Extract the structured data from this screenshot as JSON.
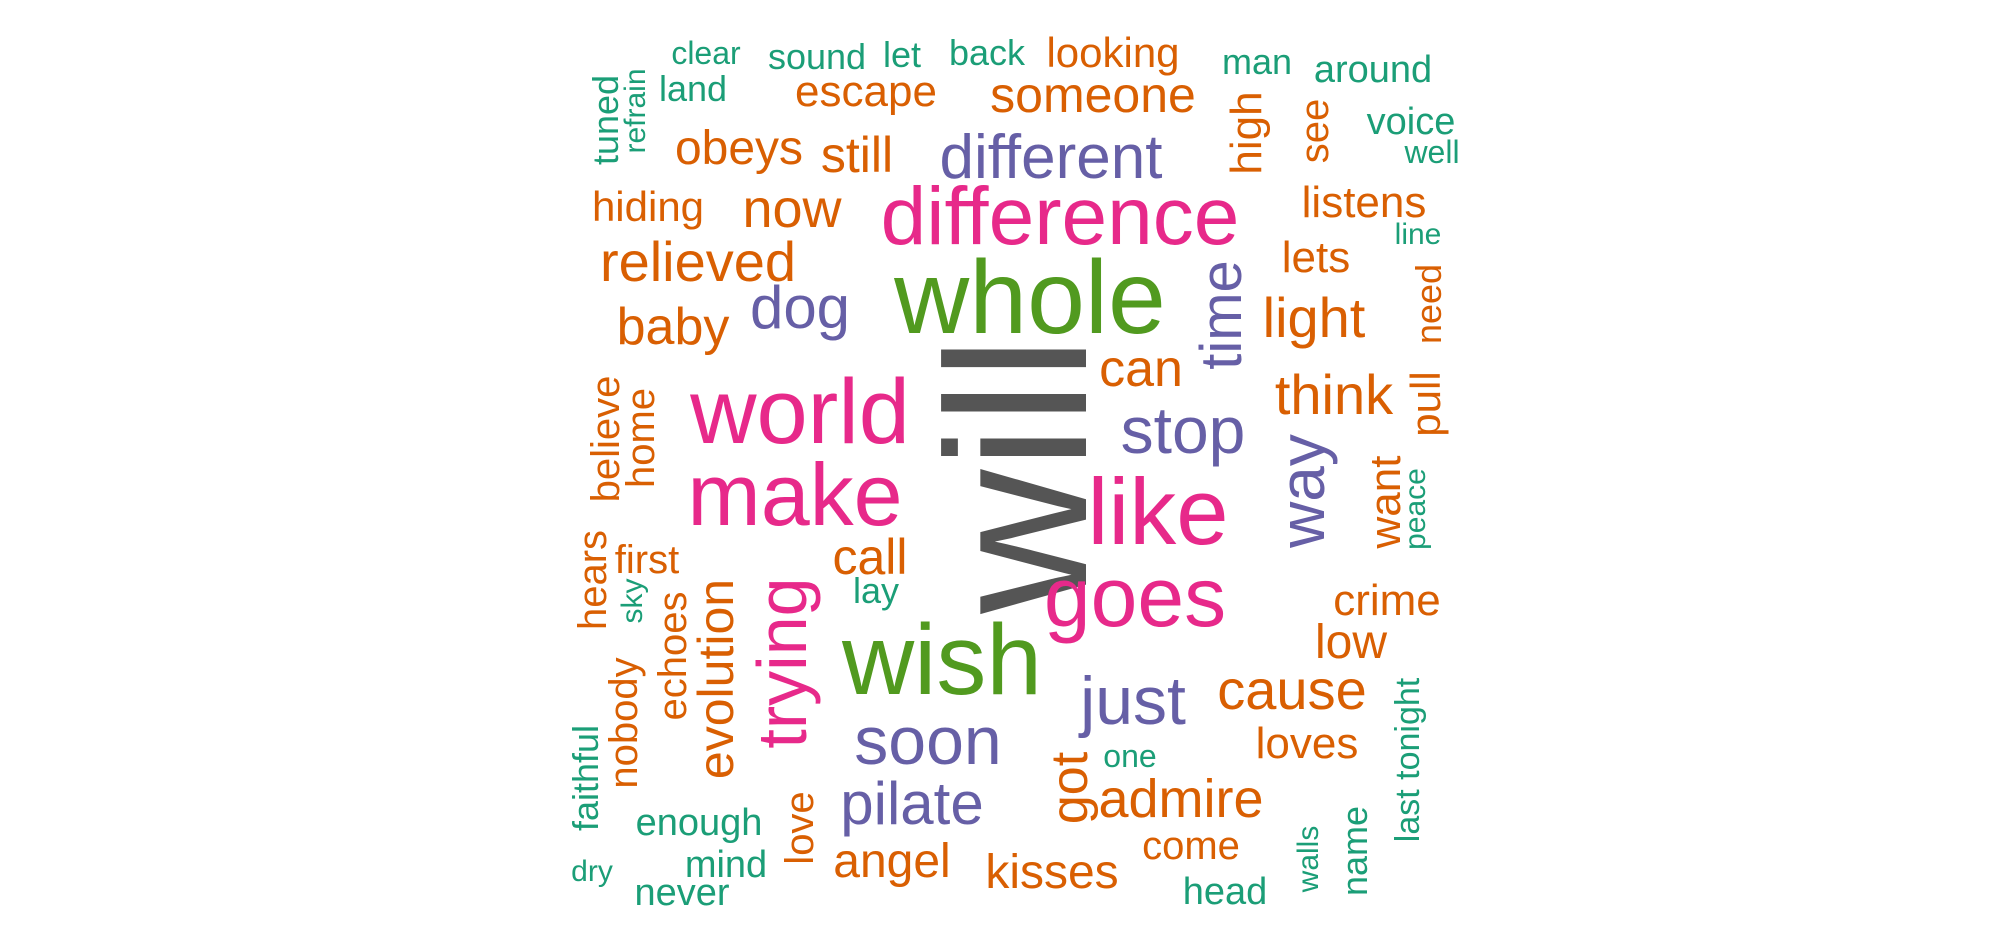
{
  "palette": {
    "gray": "#555555",
    "green": "#1b9e77",
    "orange": "#d95f02",
    "purple": "#665fa6",
    "magenta": "#e7298a",
    "lime": "#519a1f"
  },
  "words": [
    {
      "text": "will",
      "color": "gray"
    },
    {
      "text": "whole",
      "color": "lime"
    },
    {
      "text": "wish",
      "color": "lime"
    },
    {
      "text": "difference",
      "color": "magenta"
    },
    {
      "text": "world",
      "color": "magenta"
    },
    {
      "text": "make",
      "color": "magenta"
    },
    {
      "text": "like",
      "color": "magenta"
    },
    {
      "text": "goes",
      "color": "magenta"
    },
    {
      "text": "trying",
      "color": "magenta"
    },
    {
      "text": "different",
      "color": "purple"
    },
    {
      "text": "dog",
      "color": "purple"
    },
    {
      "text": "time",
      "color": "purple"
    },
    {
      "text": "stop",
      "color": "purple"
    },
    {
      "text": "way",
      "color": "purple"
    },
    {
      "text": "just",
      "color": "purple"
    },
    {
      "text": "soon",
      "color": "purple"
    },
    {
      "text": "pilate",
      "color": "purple"
    },
    {
      "text": "kisses",
      "color": "orange"
    },
    {
      "text": "angel",
      "color": "orange"
    },
    {
      "text": "admire",
      "color": "orange"
    },
    {
      "text": "cause",
      "color": "orange"
    },
    {
      "text": "evolution",
      "color": "orange"
    },
    {
      "text": "got",
      "color": "orange"
    },
    {
      "text": "call",
      "color": "orange"
    },
    {
      "text": "can",
      "color": "orange"
    },
    {
      "text": "think",
      "color": "orange"
    },
    {
      "text": "light",
      "color": "orange"
    },
    {
      "text": "now",
      "color": "orange"
    },
    {
      "text": "relieved",
      "color": "orange"
    },
    {
      "text": "baby",
      "color": "orange"
    },
    {
      "text": "someone",
      "color": "orange"
    },
    {
      "text": "escape",
      "color": "orange"
    },
    {
      "text": "looking",
      "color": "orange"
    },
    {
      "text": "obeys",
      "color": "orange"
    },
    {
      "text": "still",
      "color": "orange"
    },
    {
      "text": "hiding",
      "color": "orange"
    },
    {
      "text": "listens",
      "color": "orange"
    },
    {
      "text": "lets",
      "color": "orange"
    },
    {
      "text": "high",
      "color": "orange"
    },
    {
      "text": "see",
      "color": "orange"
    },
    {
      "text": "need",
      "color": "orange"
    },
    {
      "text": "pull",
      "color": "orange"
    },
    {
      "text": "want",
      "color": "orange"
    },
    {
      "text": "crime",
      "color": "orange"
    },
    {
      "text": "low",
      "color": "orange"
    },
    {
      "text": "loves",
      "color": "orange"
    },
    {
      "text": "come",
      "color": "orange"
    },
    {
      "text": "love",
      "color": "orange"
    },
    {
      "text": "believe",
      "color": "orange"
    },
    {
      "text": "home",
      "color": "orange"
    },
    {
      "text": "hears",
      "color": "orange"
    },
    {
      "text": "first",
      "color": "orange"
    },
    {
      "text": "echoes",
      "color": "orange"
    },
    {
      "text": "nobody",
      "color": "orange"
    },
    {
      "text": "clear",
      "color": "green"
    },
    {
      "text": "sound",
      "color": "green"
    },
    {
      "text": "let",
      "color": "green"
    },
    {
      "text": "back",
      "color": "green"
    },
    {
      "text": "man",
      "color": "green"
    },
    {
      "text": "around",
      "color": "green"
    },
    {
      "text": "land",
      "color": "green"
    },
    {
      "text": "tuned",
      "color": "green"
    },
    {
      "text": "refrain",
      "color": "green"
    },
    {
      "text": "voice",
      "color": "green"
    },
    {
      "text": "well",
      "color": "green"
    },
    {
      "text": "line",
      "color": "green"
    },
    {
      "text": "peace",
      "color": "green"
    },
    {
      "text": "lay",
      "color": "green"
    },
    {
      "text": "sky",
      "color": "green"
    },
    {
      "text": "one",
      "color": "green"
    },
    {
      "text": "last tonight",
      "color": "green"
    },
    {
      "text": "faithful",
      "color": "green"
    },
    {
      "text": "enough",
      "color": "green"
    },
    {
      "text": "dry",
      "color": "green"
    },
    {
      "text": "mind",
      "color": "green"
    },
    {
      "text": "never",
      "color": "green"
    },
    {
      "text": "head",
      "color": "green"
    },
    {
      "text": "walls",
      "color": "green"
    },
    {
      "text": "name",
      "color": "green"
    }
  ]
}
